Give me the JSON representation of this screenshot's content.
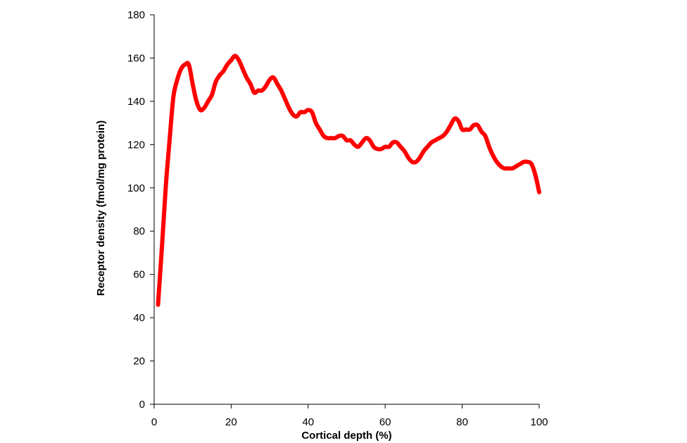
{
  "chart_data": {
    "type": "line",
    "title": "",
    "xlabel": "Cortical depth (%)",
    "ylabel": "Receptor density (fmol/mg protein)",
    "xlim": [
      0,
      100
    ],
    "ylim": [
      0,
      180
    ],
    "x_ticks": [
      0,
      20,
      40,
      60,
      80,
      100
    ],
    "y_ticks": [
      0,
      20,
      40,
      60,
      80,
      100,
      120,
      140,
      160,
      180
    ],
    "grid": false,
    "legend": "none",
    "line_color": "#ff0000",
    "axis_color": "#000000",
    "series": [
      {
        "x": [
          1,
          2,
          3,
          4,
          5,
          6,
          7,
          8,
          9,
          10,
          11,
          12,
          13,
          14,
          15,
          16,
          17,
          18,
          19,
          20,
          21,
          22,
          23,
          24,
          25,
          26,
          27,
          28,
          29,
          30,
          31,
          32,
          33,
          34,
          35,
          36,
          37,
          38,
          39,
          40,
          41,
          42,
          43,
          44,
          45,
          46,
          47,
          48,
          49,
          50,
          51,
          52,
          53,
          54,
          55,
          56,
          57,
          58,
          59,
          60,
          61,
          62,
          63,
          64,
          65,
          66,
          67,
          68,
          69,
          70,
          71,
          72,
          73,
          74,
          75,
          76,
          77,
          78,
          79,
          80,
          81,
          82,
          83,
          84,
          85,
          86,
          87,
          88,
          89,
          90,
          91,
          92,
          93,
          94,
          95,
          96,
          97,
          98,
          99,
          100
        ],
        "values": [
          46,
          72,
          100,
          122,
          142,
          150,
          155,
          157,
          157,
          148,
          140,
          136,
          137,
          140,
          143,
          149,
          152,
          154,
          157,
          159,
          161,
          159,
          155,
          151,
          148,
          144,
          145,
          145,
          147,
          150,
          151,
          148,
          145,
          141,
          137,
          134,
          133,
          135,
          135,
          136,
          135,
          130,
          127,
          124,
          123,
          123,
          123,
          124,
          124,
          122,
          122,
          120,
          119,
          121,
          123,
          122,
          119,
          118,
          118,
          119,
          119,
          121,
          121,
          119,
          117,
          114,
          112,
          112,
          114,
          117,
          119,
          121,
          122,
          123,
          124,
          126,
          129,
          132,
          131,
          127,
          127,
          127,
          129,
          129,
          126,
          124,
          119,
          115,
          112,
          110,
          109,
          109,
          109,
          110,
          111,
          112,
          112,
          111,
          106,
          98
        ]
      }
    ]
  }
}
